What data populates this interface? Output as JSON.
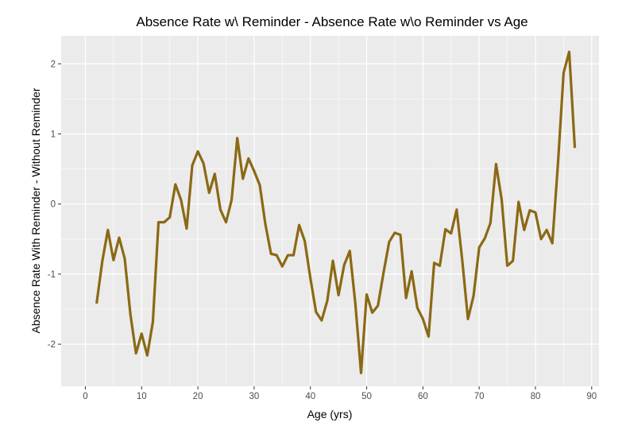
{
  "chart_data": {
    "type": "line",
    "title": "Absence Rate w\\ Reminder - Absence Rate w\\o Reminder vs Age",
    "xlabel": "Age (yrs)",
    "ylabel": "Absence Rate With Reminder - Without Reminder",
    "xlim": [
      -4.3,
      91.3
    ],
    "ylim": [
      -2.6,
      2.4
    ],
    "x_ticks": [
      0,
      10,
      20,
      30,
      40,
      50,
      60,
      70,
      80,
      90
    ],
    "y_ticks": [
      -2,
      -1,
      0,
      1,
      2
    ],
    "grid": true,
    "legend": "none",
    "colors": {
      "line": "#8B6914",
      "panel": "#EBEBEB",
      "grid": "#FFFFFF",
      "tick": "#4D4D4D"
    },
    "series": [
      {
        "x": [
          2,
          3,
          4,
          5,
          6,
          7,
          8,
          9,
          10,
          11,
          12,
          13,
          14,
          15,
          16,
          17,
          18,
          19,
          20,
          21,
          22,
          23,
          24,
          25,
          26,
          27,
          28,
          29,
          30,
          31,
          32,
          33,
          34,
          35,
          36,
          37,
          38,
          39,
          40,
          41,
          42,
          43,
          44,
          45,
          46,
          47,
          48,
          49,
          50,
          51,
          52,
          53,
          54,
          55,
          56,
          57,
          58,
          59,
          60,
          61,
          62,
          63,
          64,
          65,
          66,
          67,
          68,
          69,
          70,
          71,
          72,
          73,
          74,
          75,
          76,
          77,
          78,
          79,
          80,
          81,
          82,
          83,
          84,
          85,
          86,
          87
        ],
        "y": [
          -1.42,
          -0.82,
          -0.37,
          -0.8,
          -0.48,
          -0.78,
          -1.57,
          -2.13,
          -1.85,
          -2.16,
          -1.68,
          -0.26,
          -0.26,
          -0.19,
          0.28,
          0.06,
          -0.35,
          0.55,
          0.75,
          0.58,
          0.16,
          0.43,
          -0.08,
          -0.26,
          0.06,
          0.94,
          0.36,
          0.65,
          0.47,
          0.27,
          -0.29,
          -0.71,
          -0.73,
          -0.89,
          -0.73,
          -0.73,
          -0.3,
          -0.53,
          -1.06,
          -1.54,
          -1.66,
          -1.38,
          -0.81,
          -1.3,
          -0.87,
          -0.67,
          -1.43,
          -2.41,
          -1.29,
          -1.55,
          -1.45,
          -0.98,
          -0.54,
          -0.41,
          -0.44,
          -1.34,
          -0.96,
          -1.48,
          -1.64,
          -1.89,
          -0.84,
          -0.88,
          -0.36,
          -0.42,
          -0.08,
          -0.81,
          -1.64,
          -1.31,
          -0.62,
          -0.49,
          -0.27,
          0.57,
          0.06,
          -0.88,
          -0.81,
          0.03,
          -0.37,
          -0.09,
          -0.12,
          -0.5,
          -0.37,
          -0.56,
          0.57,
          1.87,
          2.17,
          0.8
        ]
      }
    ]
  }
}
